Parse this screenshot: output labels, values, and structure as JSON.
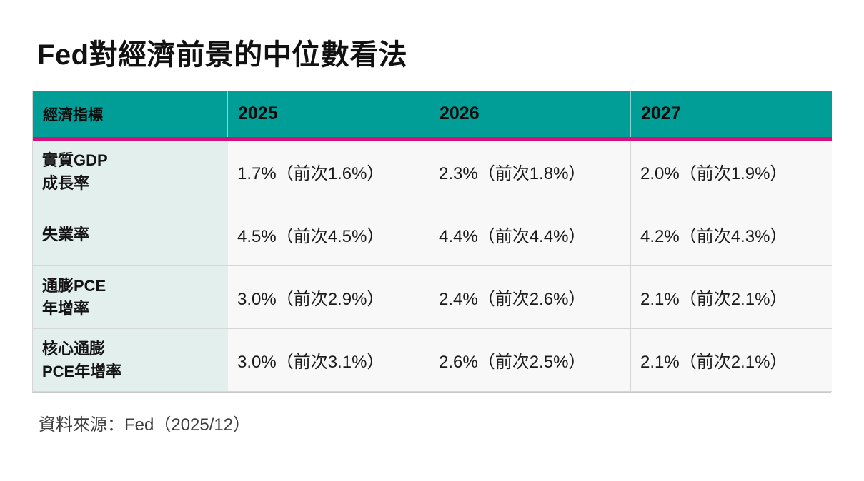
{
  "colors": {
    "header_teal": "#009E97",
    "accent_pink": "#D4117D",
    "row_header_bg": "#E3EFED",
    "cell_bg": "#F8F8F8",
    "border_gray": "#D6D6D6"
  },
  "chart_data": {
    "type": "table",
    "title": "Fed對經濟前景的中位數看法",
    "columns": [
      "經濟指標",
      "2025",
      "2026",
      "2027"
    ],
    "rows": [
      {
        "indicator": "實質GDP\n成長率",
        "values": [
          "1.7%（前次1.6%）",
          "2.3%（前次1.8%）",
          "2.0%（前次1.9%）"
        ]
      },
      {
        "indicator": "失業率",
        "values": [
          "4.5%（前次4.5%）",
          "4.4%（前次4.4%）",
          "4.2%（前次4.3%）"
        ]
      },
      {
        "indicator": "通膨PCE\n年增率",
        "values": [
          "3.0%（前次2.9%）",
          "2.4%（前次2.6%）",
          "2.1%（前次2.1%）"
        ]
      },
      {
        "indicator": "核心通膨\nPCE年增率",
        "values": [
          "3.0%（前次3.1%）",
          "2.6%（前次2.5%）",
          "2.1%（前次2.1%）"
        ]
      }
    ],
    "numeric": {
      "years": [
        "2025",
        "2026",
        "2027"
      ],
      "indicators": [
        "實質GDP成長率",
        "失業率",
        "通膨PCE年增率",
        "核心通膨PCE年增率"
      ],
      "current": [
        [
          1.7,
          2.3,
          2.0
        ],
        [
          4.5,
          4.4,
          4.2
        ],
        [
          3.0,
          2.4,
          2.1
        ],
        [
          3.0,
          2.6,
          2.1
        ]
      ],
      "previous": [
        [
          1.6,
          1.8,
          1.9
        ],
        [
          4.5,
          4.4,
          4.3
        ],
        [
          2.9,
          2.6,
          2.1
        ],
        [
          3.1,
          2.5,
          2.1
        ]
      ]
    },
    "source": "資料來源：Fed（2025/12）"
  }
}
